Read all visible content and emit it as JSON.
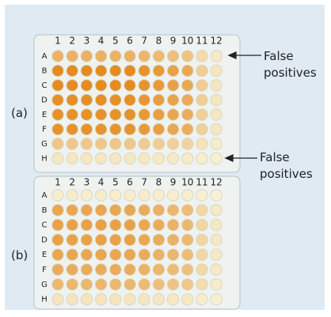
{
  "plates": [
    {
      "label": "(a)",
      "columns": [
        "1",
        "2",
        "3",
        "4",
        "5",
        "6",
        "7",
        "8",
        "9",
        "10",
        "11",
        "12"
      ],
      "rows": [
        "A",
        "B",
        "C",
        "D",
        "E",
        "F",
        "G",
        "H"
      ]
    },
    {
      "label": "(b)",
      "columns": [
        "1",
        "2",
        "3",
        "4",
        "5",
        "6",
        "7",
        "8",
        "9",
        "10",
        "11",
        "12"
      ],
      "rows": [
        "A",
        "B",
        "C",
        "D",
        "E",
        "F",
        "G",
        "H"
      ]
    }
  ],
  "annotations": [
    {
      "text": "False positives"
    },
    {
      "text": "False positives"
    }
  ]
}
